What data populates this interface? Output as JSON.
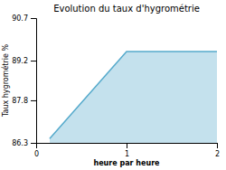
{
  "chart_data": {
    "type": "area",
    "title": "Evolution du taux d'hygrométrie",
    "xlabel": "heure par heure",
    "ylabel": "Taux hygrométrie %",
    "x": [
      0.15,
      1.0,
      2.0
    ],
    "values": [
      86.45,
      89.52,
      89.52
    ],
    "color": "#55aacc",
    "xlim": [
      0,
      2
    ],
    "ylim": [
      86.3,
      90.7
    ],
    "xticks": [
      0,
      1,
      2
    ],
    "yticks": [
      86.3,
      87.8,
      89.2,
      90.7
    ],
    "grid": false
  }
}
